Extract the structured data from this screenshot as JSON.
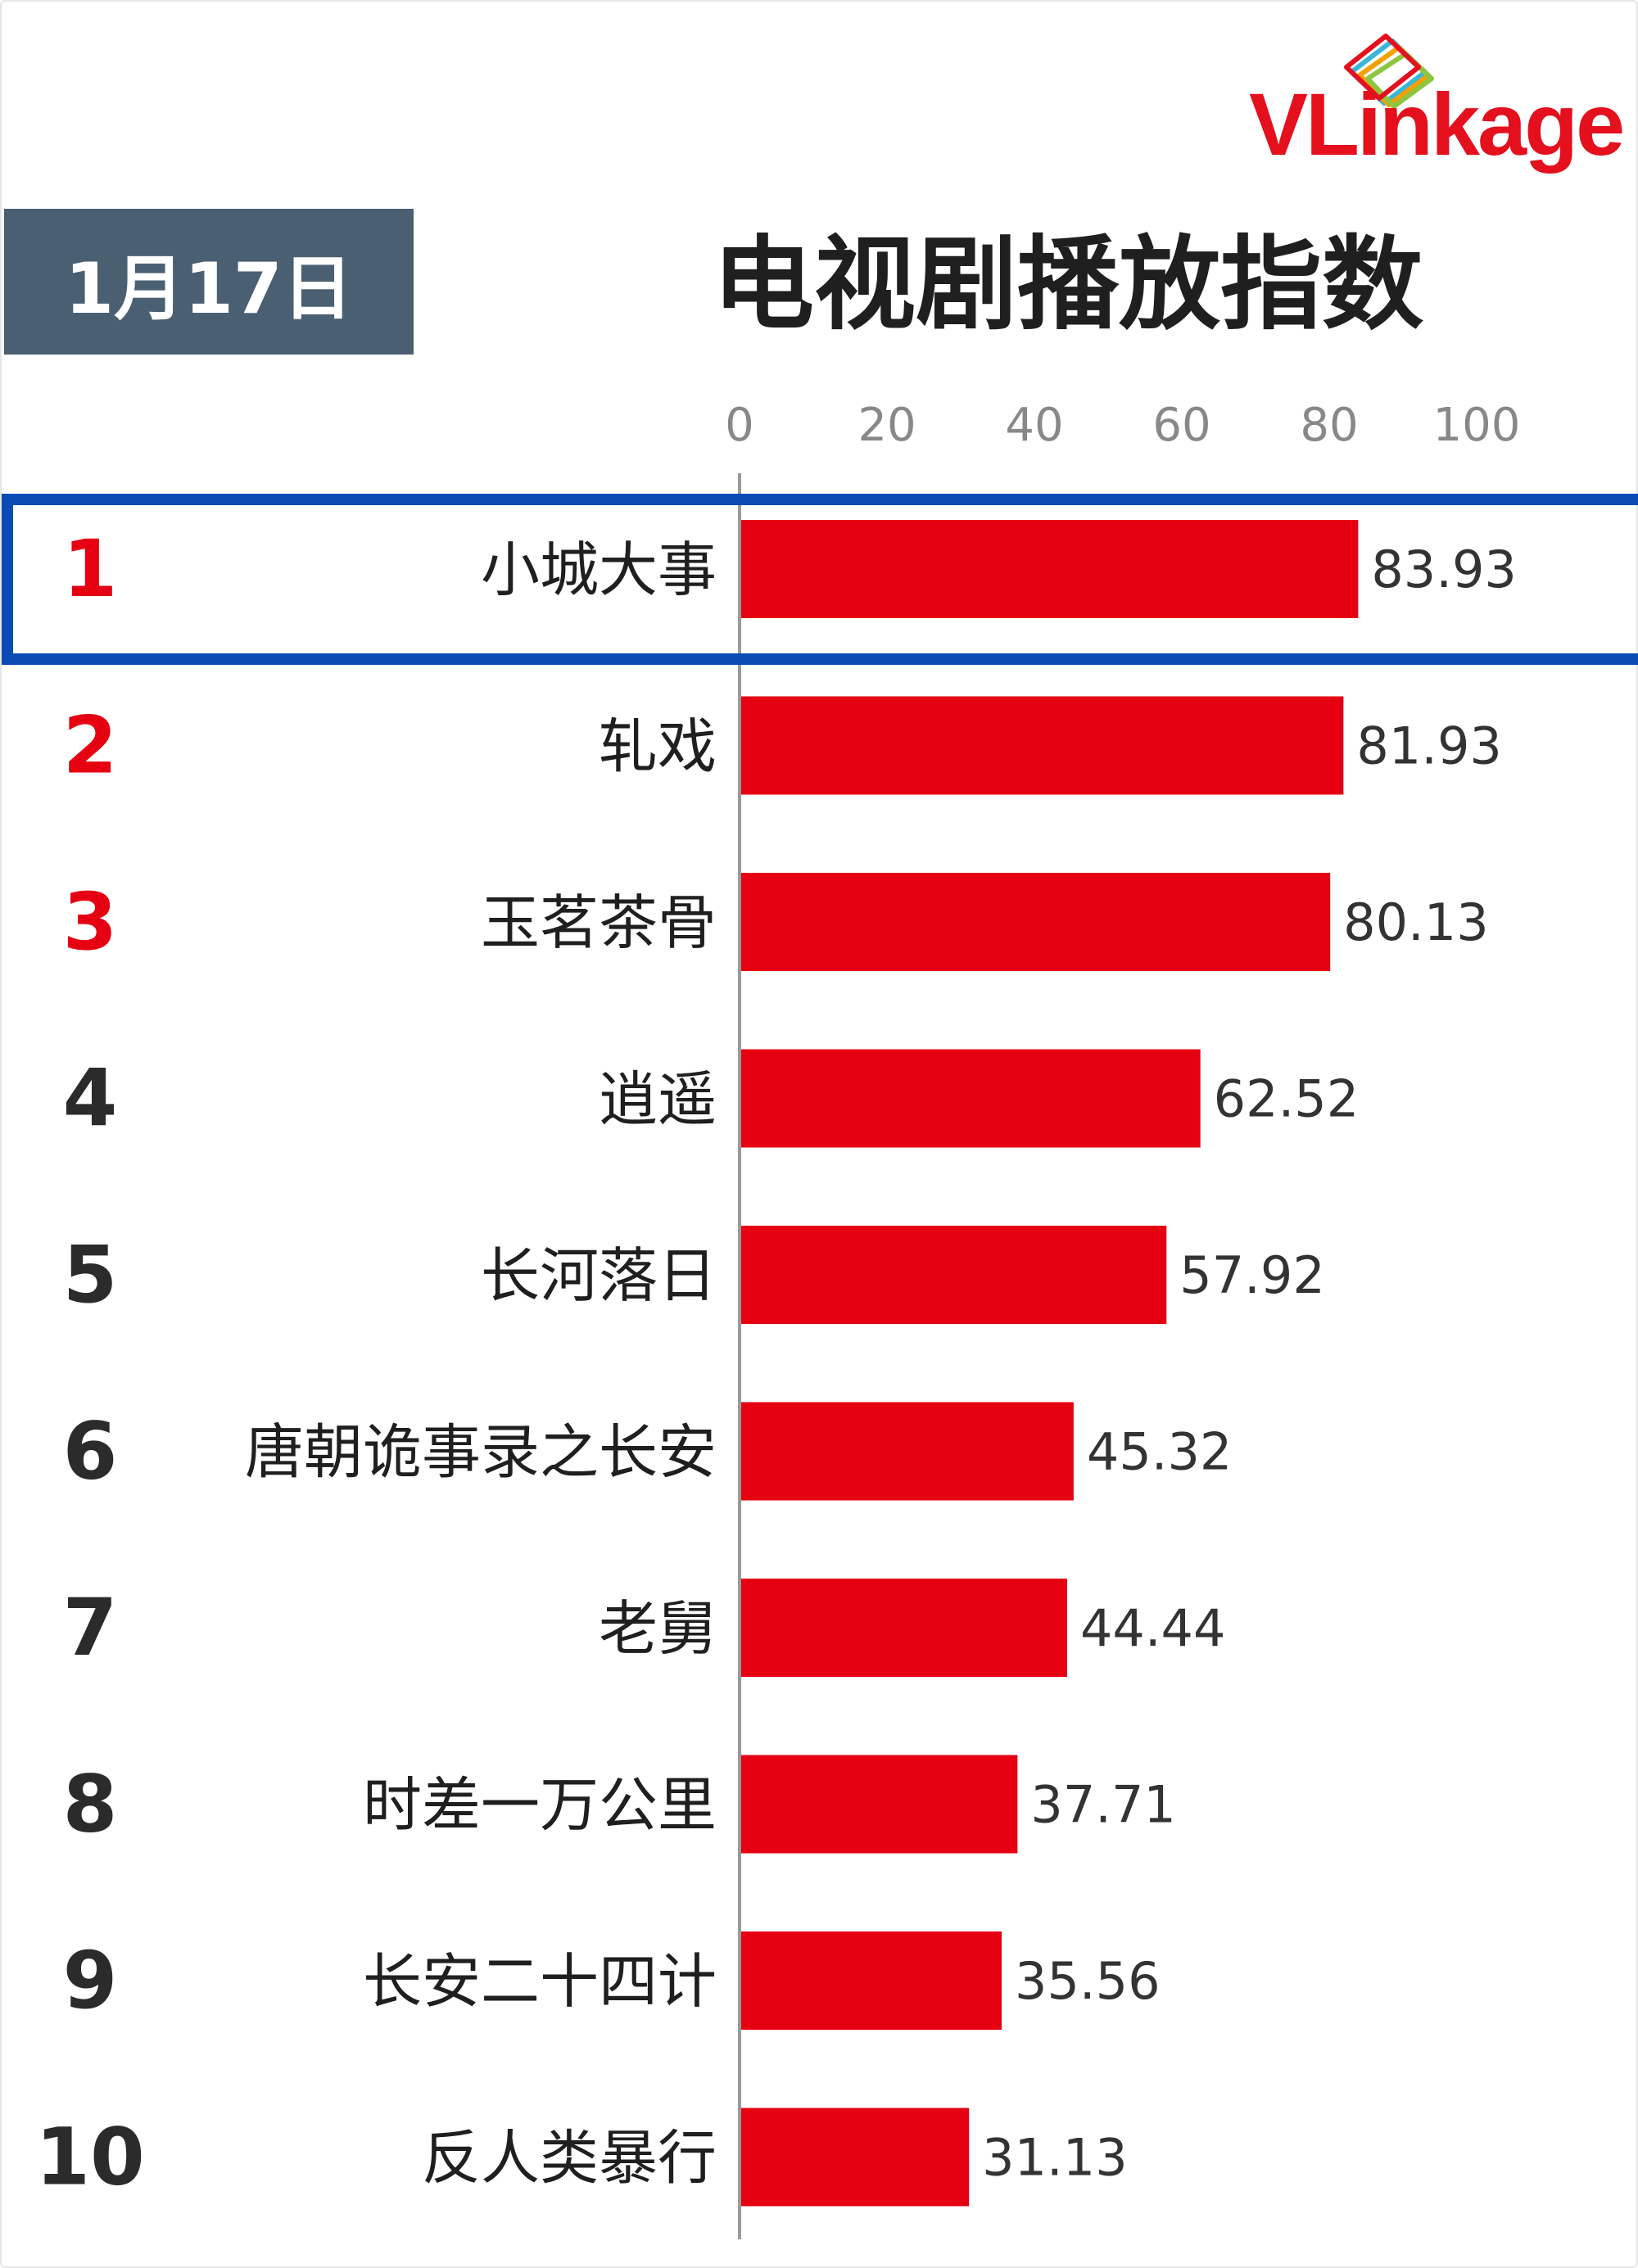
{
  "header": {
    "brand": "VLinkage",
    "date": "1月17日",
    "title": "电视剧播放指数"
  },
  "colors": {
    "bar": "#e50012",
    "rank_top": "#e50012",
    "rank_other": "#2b2b2b",
    "highlight_border": "#0a4bb4",
    "date_badge": "#4b5f72",
    "axis_text": "#888888",
    "brand": "#e4101e"
  },
  "chart_data": {
    "type": "bar",
    "orientation": "horizontal",
    "xlim": [
      0,
      100
    ],
    "xticks": [
      "0",
      "20",
      "40",
      "60",
      "80",
      "100"
    ],
    "grid": false,
    "highlighted_rank": 1,
    "ranks": [
      "1",
      "2",
      "3",
      "4",
      "5",
      "6",
      "7",
      "8",
      "9",
      "10"
    ],
    "categories": [
      "小城大事",
      "轧戏",
      "玉茗茶骨",
      "逍遥",
      "长河落日",
      "唐朝诡事录之长安",
      "老舅",
      "时差一万公里",
      "长安二十四计",
      "反人类暴行"
    ],
    "values": [
      83.93,
      81.93,
      80.13,
      62.52,
      57.92,
      45.32,
      44.44,
      37.71,
      35.56,
      31.13
    ],
    "value_labels": [
      "83.93",
      "81.93",
      "80.13",
      "62.52",
      "57.92",
      "45.32",
      "44.44",
      "37.71",
      "35.56",
      "31.13"
    ]
  }
}
